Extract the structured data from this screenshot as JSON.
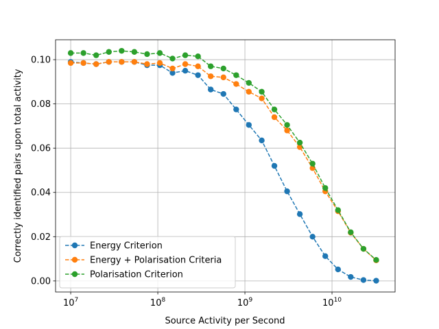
{
  "chart_data": {
    "type": "line",
    "log_x": true,
    "grid": true,
    "legend_position": "lower left",
    "x_label": "Source Activity per Second",
    "y_label": "Correctly identified pairs upon total activity",
    "x": [
      10000000.0,
      14000000.0,
      19600000.0,
      27440000.0,
      38420000.0,
      53780000.0,
      75300000.0,
      105400000.0,
      147600000.0,
      206600000.0,
      289300000.0,
      405000000.0,
      567000000.0,
      794000000.0,
      1110000000.0,
      1560000000.0,
      2180000000.0,
      3050000000.0,
      4270000000.0,
      5980000000.0,
      8370000000.0,
      11720000000.0,
      16410000000.0,
      22970000000.0,
      32160000000.0
    ],
    "xlim": [
      6700000.0,
      53000000000.0
    ],
    "xticks": [
      {
        "value": 10000000.0,
        "label": "10",
        "exp": "7"
      },
      {
        "value": 100000000.0,
        "label": "10",
        "exp": "8"
      },
      {
        "value": 1000000000.0,
        "label": "10",
        "exp": "9"
      },
      {
        "value": 10000000000.0,
        "label": "10",
        "exp": "10"
      }
    ],
    "ylim": [
      -0.005,
      0.109
    ],
    "yticks": [
      {
        "value": 0,
        "label": "0.00"
      },
      {
        "value": 0.02,
        "label": "0.02"
      },
      {
        "value": 0.04,
        "label": "0.04"
      },
      {
        "value": 0.06,
        "label": "0.06"
      },
      {
        "value": 0.08,
        "label": "0.08"
      },
      {
        "value": 0.1,
        "label": "0.10"
      }
    ],
    "series": [
      {
        "name": "Energy Criterion",
        "color": "#1f77b4",
        "values": [
          0.099,
          0.0985,
          0.098,
          0.099,
          0.099,
          0.099,
          0.0975,
          0.0975,
          0.094,
          0.095,
          0.093,
          0.0865,
          0.0845,
          0.0775,
          0.0705,
          0.0635,
          0.052,
          0.0405,
          0.0302,
          0.02,
          0.0112,
          0.0052,
          0.0018,
          0.0004,
          0.0001
        ]
      },
      {
        "name": "Energy + Polarisation Criteria",
        "color": "#ff7f0e",
        "values": [
          0.0985,
          0.0985,
          0.098,
          0.099,
          0.099,
          0.099,
          0.098,
          0.0985,
          0.096,
          0.098,
          0.097,
          0.0925,
          0.092,
          0.089,
          0.0855,
          0.0825,
          0.074,
          0.068,
          0.0605,
          0.051,
          0.0405,
          0.0315,
          0.0218,
          0.0145,
          0.0093
        ]
      },
      {
        "name": "Polarisation Criterion",
        "color": "#2ca02c",
        "values": [
          0.103,
          0.103,
          0.102,
          0.1035,
          0.104,
          0.1035,
          0.1025,
          0.103,
          0.1005,
          0.102,
          0.1015,
          0.097,
          0.096,
          0.093,
          0.0895,
          0.0855,
          0.0775,
          0.0705,
          0.0625,
          0.053,
          0.042,
          0.032,
          0.022,
          0.0145,
          0.0095
        ]
      }
    ]
  }
}
